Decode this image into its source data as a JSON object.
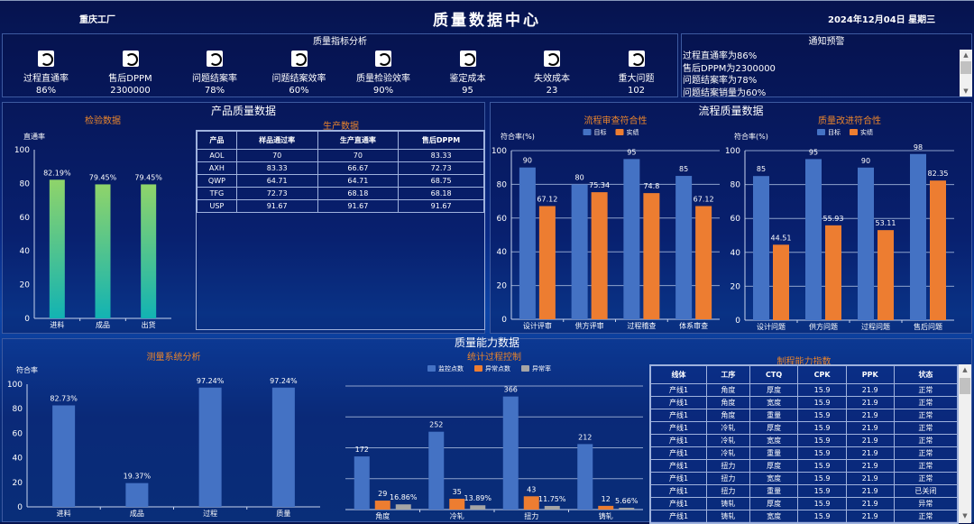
{
  "header": {
    "factory": "重庆工厂",
    "title": "质量数据中心",
    "date": "2024年12月04日 星期三"
  },
  "kpi_panel": {
    "title": "质量指标分析",
    "items": [
      {
        "label": "过程直通率",
        "value": "86%",
        "icon": "refresh-clock-icon"
      },
      {
        "label": "售后DPPM",
        "value": "2300000",
        "icon": "refresh-clock-icon"
      },
      {
        "label": "问题结案率",
        "value": "78%",
        "icon": "refresh-clock-icon"
      },
      {
        "label": "问题结案效率",
        "value": "60%",
        "icon": "refresh-clock-icon"
      },
      {
        "label": "质量检验效率",
        "value": "90%",
        "icon": "refresh-clock-icon"
      },
      {
        "label": "鉴定成本",
        "value": "95",
        "icon": "refresh-clock-icon"
      },
      {
        "label": "失效成本",
        "value": "23",
        "icon": "refresh-clock-icon"
      },
      {
        "label": "重大问题",
        "value": "102",
        "icon": "refresh-clock-icon"
      }
    ]
  },
  "notice": {
    "title": "通知预警",
    "items": [
      "过程直通率为86%",
      "售后DPPM为2300000",
      "问题结案率为78%",
      "问题结案销量为60%"
    ]
  },
  "product_panel": {
    "title": "产品质量数据",
    "table_title": "生产数据",
    "table": {
      "headers": [
        "产品",
        "样品通过率",
        "生产直通率",
        "售后DPPM"
      ],
      "rows": [
        [
          "AOL",
          "70",
          "70",
          "83.33"
        ],
        [
          "AXH",
          "83.33",
          "66.67",
          "72.73"
        ],
        [
          "QWP",
          "64.71",
          "64.71",
          "68.75"
        ],
        [
          "TFG",
          "72.73",
          "68.18",
          "68.18"
        ],
        [
          "USP",
          "91.67",
          "91.67",
          "91.67"
        ]
      ]
    }
  },
  "process_panel": {
    "title": "流程质量数据"
  },
  "capability_panel": {
    "title": "质量能力数据",
    "table_title": "制程能力指数",
    "table": {
      "headers": [
        "线体",
        "工序",
        "CTQ",
        "CPK",
        "PPK",
        "状态"
      ],
      "rows": [
        [
          "产线1",
          "角度",
          "厚度",
          "15.9",
          "21.9",
          "正常"
        ],
        [
          "产线1",
          "角度",
          "宽度",
          "15.9",
          "21.9",
          "正常"
        ],
        [
          "产线1",
          "角度",
          "重量",
          "15.9",
          "21.9",
          "正常"
        ],
        [
          "产线1",
          "冷轧",
          "厚度",
          "15.9",
          "21.9",
          "正常"
        ],
        [
          "产线1",
          "冷轧",
          "宽度",
          "15.9",
          "21.9",
          "正常"
        ],
        [
          "产线1",
          "冷轧",
          "重量",
          "15.9",
          "21.9",
          "正常"
        ],
        [
          "产线1",
          "扭力",
          "厚度",
          "15.9",
          "21.9",
          "正常"
        ],
        [
          "产线1",
          "扭力",
          "宽度",
          "15.9",
          "21.9",
          "正常"
        ],
        [
          "产线1",
          "扭力",
          "重量",
          "15.9",
          "21.9",
          "已关闭"
        ],
        [
          "产线1",
          "铸轧",
          "厚度",
          "15.9",
          "21.9",
          "异常"
        ],
        [
          "产线1",
          "铸轧",
          "宽度",
          "15.9",
          "21.9",
          "正常"
        ]
      ]
    }
  },
  "colors": {
    "target": "#4472c4",
    "actual": "#ed7d31",
    "rate": "#a5a5a5",
    "title_orange": "#e8842c",
    "gradient_top": "#8fd46a",
    "gradient_bottom": "#12b3b3"
  },
  "chart_data": [
    {
      "id": "inspect",
      "type": "bar",
      "title": "检验数据",
      "ylabel": "直通率",
      "ylim": [
        0,
        100
      ],
      "yticks": [
        0,
        20,
        40,
        60,
        80,
        100
      ],
      "categories": [
        "进料",
        "成品",
        "出货"
      ],
      "series": [
        {
          "values": [
            82.19,
            79.45,
            79.45
          ],
          "labels": [
            "82.19%",
            "79.45%",
            "79.45%"
          ],
          "color": "gradient"
        }
      ]
    },
    {
      "id": "audit",
      "type": "bar",
      "title": "流程审查符合性",
      "ylabel": "符合率(%)",
      "ylim": [
        0,
        100
      ],
      "yticks": [
        0,
        20,
        40,
        60,
        80,
        100
      ],
      "grid": true,
      "legend": "top-center",
      "categories": [
        "设计评审",
        "供方评审",
        "过程稽查",
        "体系审查"
      ],
      "series": [
        {
          "name": "目标",
          "values": [
            90,
            80,
            95,
            85
          ],
          "labels": [
            "90",
            "80",
            "95",
            "85"
          ],
          "color": "#4472c4"
        },
        {
          "name": "实绩",
          "values": [
            67.12,
            75.34,
            74.8,
            67.12
          ],
          "labels": [
            "67.12",
            "75.34",
            "74.8",
            "67.12"
          ],
          "color": "#ed7d31"
        }
      ]
    },
    {
      "id": "improve",
      "type": "bar",
      "title": "质量改进符合性",
      "ylabel": "符合率(%)",
      "ylim": [
        0,
        100
      ],
      "yticks": [
        0,
        20,
        40,
        60,
        80,
        100
      ],
      "grid": true,
      "legend": "top-center",
      "categories": [
        "设计问题",
        "供方问题",
        "过程问题",
        "售后问题"
      ],
      "series": [
        {
          "name": "目标",
          "values": [
            85,
            95,
            90,
            98
          ],
          "labels": [
            "85",
            "95",
            "90",
            "98"
          ],
          "color": "#4472c4"
        },
        {
          "name": "实绩",
          "values": [
            44.51,
            55.93,
            53.11,
            82.35
          ],
          "labels": [
            "44.51",
            "55.93",
            "53.11",
            "82.35"
          ],
          "color": "#ed7d31"
        }
      ]
    },
    {
      "id": "msa",
      "type": "bar",
      "title": "测量系统分析",
      "ylabel": "符合率",
      "ylim": [
        0,
        100
      ],
      "yticks": [
        0,
        20,
        40,
        60,
        80,
        100
      ],
      "categories": [
        "进料",
        "成品",
        "过程",
        "质量"
      ],
      "series": [
        {
          "values": [
            82.73,
            19.37,
            97.24,
            97.24
          ],
          "labels": [
            "82.73%",
            "19.37%",
            "97.24%",
            "97.24%"
          ],
          "color": "#4472c4"
        }
      ]
    },
    {
      "id": "spc",
      "type": "bar",
      "title": "统计过程控制",
      "ylim": [
        0,
        400
      ],
      "grid": true,
      "legend": "top-center",
      "categories": [
        "角度",
        "冷轧",
        "扭力",
        "铸轧"
      ],
      "series": [
        {
          "name": "监控点数",
          "values": [
            172,
            252,
            366,
            212
          ],
          "labels": [
            "172",
            "252",
            "366",
            "212"
          ],
          "color": "#4472c4"
        },
        {
          "name": "异常点数",
          "values": [
            29,
            35,
            43,
            12
          ],
          "labels": [
            "29",
            "35",
            "43",
            "12"
          ],
          "color": "#ed7d31"
        },
        {
          "name": "异常率",
          "values": [
            16.86,
            13.89,
            11.75,
            5.66
          ],
          "labels": [
            "16.86%",
            "13.89%",
            "11.75%",
            "5.66%"
          ],
          "color": "#a5a5a5"
        }
      ]
    }
  ]
}
